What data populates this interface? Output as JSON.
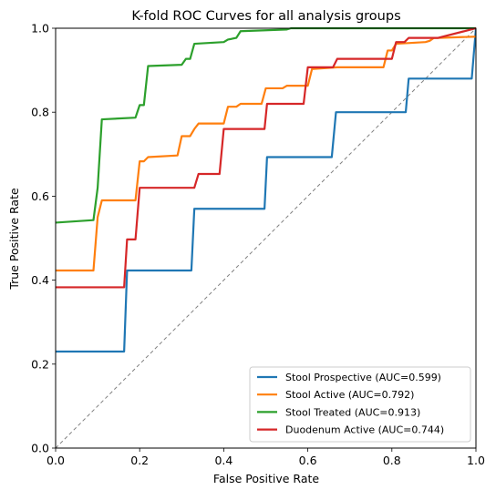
{
  "chart_data": {
    "type": "line",
    "title": "K-fold ROC Curves for all analysis groups",
    "xlabel": "False Positive Rate",
    "ylabel": "True Positive Rate",
    "xlim": [
      0,
      1
    ],
    "ylim": [
      0,
      1
    ],
    "xticks": [
      "0.0",
      "0.2",
      "0.4",
      "0.6",
      "0.8",
      "1.0"
    ],
    "yticks": [
      "0.0",
      "0.2",
      "0.4",
      "0.6",
      "0.8",
      "1.0"
    ],
    "grid": false,
    "legend_position": "bottom-right",
    "diagonal": {
      "x": [
        0,
        1
      ],
      "y": [
        0,
        1
      ],
      "color": "#808080",
      "style": "dashed"
    },
    "series": [
      {
        "name": "Stool Prospective (AUC=0.599)",
        "color": "#1f77b4",
        "x": [
          0.0,
          0.163,
          0.17,
          0.323,
          0.33,
          0.497,
          0.503,
          0.657,
          0.667,
          0.833,
          0.84,
          0.99,
          1.0
        ],
        "y": [
          0.23,
          0.23,
          0.423,
          0.423,
          0.57,
          0.57,
          0.693,
          0.693,
          0.8,
          0.8,
          0.88,
          0.88,
          1.0
        ]
      },
      {
        "name": "Stool Active (AUC=0.792)",
        "color": "#ff7f0e",
        "x": [
          0.0,
          0.09,
          0.1,
          0.11,
          0.19,
          0.2,
          0.21,
          0.22,
          0.29,
          0.3,
          0.31,
          0.32,
          0.33,
          0.34,
          0.4,
          0.41,
          0.43,
          0.44,
          0.48,
          0.49,
          0.5,
          0.51,
          0.54,
          0.55,
          0.6,
          0.61,
          0.67,
          0.68,
          0.78,
          0.79,
          0.8,
          0.81,
          0.88,
          0.89,
          0.9,
          0.91,
          1.0
        ],
        "y": [
          0.423,
          0.423,
          0.55,
          0.59,
          0.59,
          0.683,
          0.683,
          0.693,
          0.697,
          0.743,
          0.743,
          0.743,
          0.76,
          0.773,
          0.773,
          0.813,
          0.813,
          0.82,
          0.82,
          0.82,
          0.857,
          0.857,
          0.857,
          0.863,
          0.863,
          0.903,
          0.907,
          0.907,
          0.907,
          0.947,
          0.947,
          0.963,
          0.967,
          0.97,
          0.977,
          0.977,
          0.98
        ]
      },
      {
        "name": "Stool Treated (AUC=0.913)",
        "color": "#2ca02c",
        "x": [
          0.0,
          0.09,
          0.1,
          0.11,
          0.19,
          0.2,
          0.21,
          0.22,
          0.3,
          0.31,
          0.32,
          0.33,
          0.4,
          0.41,
          0.43,
          0.44,
          0.55,
          0.56,
          1.0
        ],
        "y": [
          0.537,
          0.543,
          0.62,
          0.783,
          0.787,
          0.817,
          0.817,
          0.91,
          0.913,
          0.927,
          0.927,
          0.963,
          0.967,
          0.973,
          0.977,
          0.993,
          0.997,
          1.0,
          1.0
        ]
      },
      {
        "name": "Duodenum Active (AUC=0.744)",
        "color": "#d62728",
        "x": [
          0.0,
          0.163,
          0.17,
          0.19,
          0.2,
          0.33,
          0.34,
          0.39,
          0.4,
          0.497,
          0.503,
          0.59,
          0.6,
          0.66,
          0.67,
          0.7,
          0.71,
          0.8,
          0.81,
          0.83,
          0.84,
          0.9,
          0.91,
          1.0
        ],
        "y": [
          0.383,
          0.383,
          0.497,
          0.497,
          0.62,
          0.62,
          0.653,
          0.653,
          0.76,
          0.76,
          0.82,
          0.82,
          0.907,
          0.907,
          0.927,
          0.927,
          0.927,
          0.927,
          0.967,
          0.967,
          0.977,
          0.977,
          0.977,
          1.0
        ]
      }
    ]
  }
}
